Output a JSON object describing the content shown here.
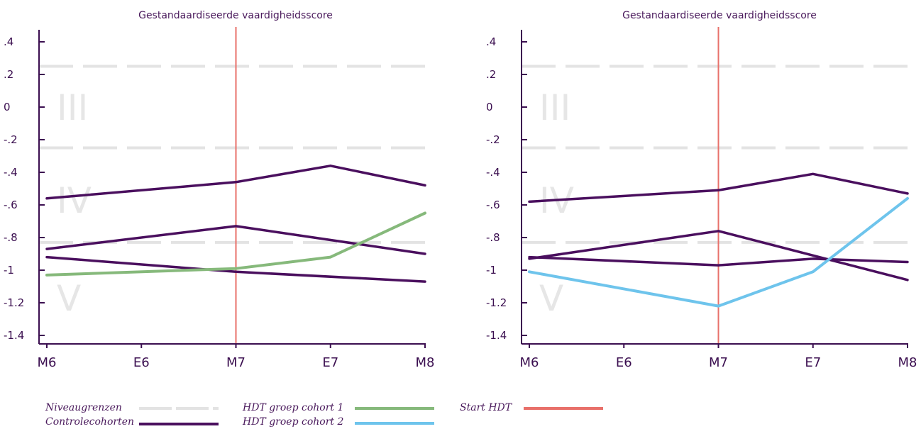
{
  "chart_data": [
    {
      "type": "line",
      "title": "Gestandaardiseerde vaardigheidsscore",
      "categories": [
        "M6",
        "E6",
        "M7",
        "E7",
        "M8"
      ],
      "ylim": [
        -1.45,
        0.45
      ],
      "yticks": [
        {
          "v": 0.4,
          "label": ".4"
        },
        {
          "v": 0.2,
          "label": ".2"
        },
        {
          "v": 0,
          "label": "0"
        },
        {
          "v": -0.2,
          "label": "-.2"
        },
        {
          "v": -0.4,
          "label": "-.4"
        },
        {
          "v": -0.6,
          "label": "-.6"
        },
        {
          "v": -0.8,
          "label": "-.8"
        },
        {
          "v": -1.0,
          "label": "-1"
        },
        {
          "v": -1.2,
          "label": "-1.2"
        },
        {
          "v": -1.4,
          "label": "-1.4"
        }
      ],
      "level_boundaries": [
        0.25,
        -0.25,
        -0.83
      ],
      "level_labels": [
        {
          "label": "III",
          "y": 0.0
        },
        {
          "label": "IV",
          "y": -0.57
        },
        {
          "label": "V",
          "y": -1.17
        }
      ],
      "start_marker": "M7",
      "series": [
        {
          "name": "Controlecohorten",
          "color": "#4a0f5e",
          "values": [
            -0.56,
            null,
            -0.46,
            -0.36,
            -0.48
          ]
        },
        {
          "name": "Controlecohorten",
          "color": "#4a0f5e",
          "values": [
            -0.87,
            null,
            -0.73,
            null,
            -0.9
          ]
        },
        {
          "name": "Controlecohorten",
          "color": "#4a0f5e",
          "values": [
            -0.92,
            null,
            -1.01,
            null,
            -1.07
          ]
        },
        {
          "name": "HDT groep cohort 1",
          "color": "#86b97b",
          "values": [
            -1.03,
            null,
            -0.99,
            -0.92,
            -0.65
          ]
        }
      ]
    },
    {
      "type": "line",
      "title": "Gestandaardiseerde vaardigheidsscore",
      "categories": [
        "M6",
        "E6",
        "M7",
        "E7",
        "M8"
      ],
      "ylim": [
        -1.45,
        0.45
      ],
      "yticks": [
        {
          "v": 0.4,
          "label": ".4"
        },
        {
          "v": 0.2,
          "label": ".2"
        },
        {
          "v": 0,
          "label": "0"
        },
        {
          "v": -0.2,
          "label": "-.2"
        },
        {
          "v": -0.4,
          "label": "-.4"
        },
        {
          "v": -0.6,
          "label": "-.6"
        },
        {
          "v": -0.8,
          "label": "-.8"
        },
        {
          "v": -1.0,
          "label": "-1"
        },
        {
          "v": -1.2,
          "label": "-1.2"
        },
        {
          "v": -1.4,
          "label": "-1.4"
        }
      ],
      "level_boundaries": [
        0.25,
        -0.25,
        -0.83
      ],
      "level_labels": [
        {
          "label": "III",
          "y": 0.0
        },
        {
          "label": "IV",
          "y": -0.57
        },
        {
          "label": "V",
          "y": -1.17
        }
      ],
      "start_marker": "M7",
      "series": [
        {
          "name": "Controlecohorten",
          "color": "#4a0f5e",
          "values": [
            -0.58,
            null,
            -0.51,
            -0.41,
            -0.53
          ]
        },
        {
          "name": "Controlecohorten",
          "color": "#4a0f5e",
          "values": [
            -0.93,
            null,
            -0.76,
            null,
            -1.06
          ]
        },
        {
          "name": "Controlecohorten",
          "color": "#4a0f5e",
          "values": [
            -0.92,
            null,
            -0.97,
            -0.93,
            -0.95
          ]
        },
        {
          "name": "HDT groep cohort 2",
          "color": "#6ec4ec",
          "values": [
            -1.01,
            null,
            -1.22,
            -1.01,
            -0.56
          ]
        }
      ]
    }
  ],
  "legend": {
    "niveaugrenzen": "Niveaugrenzen",
    "controlecohorten": "Controlecohorten",
    "cohort1": "HDT groep cohort 1",
    "cohort2": "HDT groep cohort 2",
    "start_hdt": "Start HDT"
  },
  "colors": {
    "control": "#4a0f5e",
    "cohort1": "#86b97b",
    "cohort2": "#6ec4ec",
    "start": "#e8706a",
    "boundary": "#e3e3e3"
  }
}
